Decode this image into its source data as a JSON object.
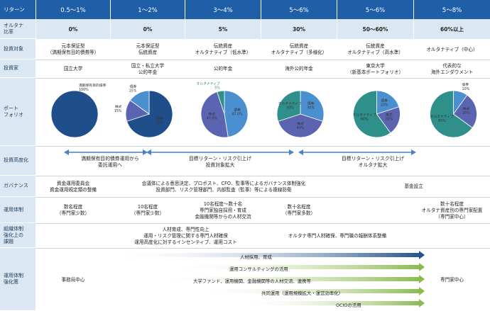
{
  "header": {
    "row_label": "リターン",
    "cols": [
      "0.5〜1%",
      "1〜2%",
      "3〜4%",
      "5〜6%",
      "5〜6%",
      "5〜8%"
    ]
  },
  "rows": {
    "alt_ratio": {
      "label": "オルタナ\n比率",
      "values": [
        "0%",
        "0%",
        "5%",
        "30%",
        "50〜60%",
        "60%以上"
      ]
    },
    "investment_target": {
      "label": "投資対象",
      "values": [
        "元本保証型\n（満期保有目的債券等）",
        "元本保証型\n伝統資産",
        "伝統資産\nオルタナティブ（低水準）",
        "伝統資産\nオルタナティブ（多様化）",
        "伝統資産\nオルタナティブ（高水準）",
        "オルタナティブ（中心）"
      ]
    },
    "investor": {
      "label": "投資家",
      "values": [
        "国立大学",
        "国立・私立大学\n公的年金",
        "公的年金",
        "海外公的年金",
        "東京大学\n（新基本ポートフォリオ）",
        "代表的な\n海外エンダウメント"
      ]
    },
    "portfolio": {
      "label": "ポート\nフォリオ"
    },
    "sophistication": {
      "label": "投資高度化",
      "texts": [
        "満期保有目的債券運用から\n委託運用へ",
        "目標リターン・リスク引上げ\n投資対象拡大",
        "目標リターン・リスク引上げ\nオルタナ拡大"
      ]
    },
    "governance": {
      "label": "ガバナンス",
      "texts": [
        "資金運用委員会\n資金運用規定類の整備",
        "会議体による意思決定、プロポスト、CFO、監事等によるガバナンス体制強化\n投資部門、リスク管理部門、内部監査（監事）等による複線防衛",
        "基金設立"
      ]
    },
    "structure": {
      "label": "運用体制",
      "values": [
        "数名程度\n（専門家少数）",
        "10名程度\n（専門家少数）",
        "10名程度〜数十名\n専門家独自採用・育成\n金融機関等からの人材交流",
        "数十名程度\n（専門家多数）",
        "数十名程度\nオルタナ資産別の専門家配置\n（専門家中心）"
      ]
    },
    "issues": {
      "label": "組織体制\n強化上の\n課題",
      "texts": [
        "人材育成、専門性向上\n運用・リスク管理に関する専門人材確保\n運用高度化に対するインセンティブ、運用コスト",
        "オルタナ専門人材確保、専門職の報酬体系整備"
      ]
    },
    "measures": {
      "label": "運用体制\n強化策",
      "left": "事務局中心",
      "right": "専門家中心",
      "arrows": [
        "人材採用、育成",
        "運用コンサルティングの活用",
        "大学ファンド、運用機関、金融機関等の人材交流、連携等",
        "共同運用（運用規模拡大・運営効率化）",
        "OCIOの活用"
      ]
    }
  },
  "chart_data": [
    {
      "type": "pie",
      "slices": [
        {
          "name": "満期保有目的債券",
          "value": 100,
          "label": "100%"
        }
      ]
    },
    {
      "type": "pie",
      "slices": [
        {
          "name": "債券",
          "value": 70,
          "label": "70%"
        },
        {
          "name": "株式",
          "value": 15,
          "label": "15%"
        },
        {
          "name": "債券",
          "value": 15,
          "label": "15%"
        }
      ]
    },
    {
      "type": "pie",
      "slices": [
        {
          "name": "債券",
          "value": 47.0,
          "label": "47.0%"
        },
        {
          "name": "株式",
          "value": 47.0,
          "label": "47.0%"
        },
        {
          "name": "オルタナティブ",
          "value": 5,
          "label": "5%"
        }
      ]
    },
    {
      "type": "pie",
      "slices": [
        {
          "name": "債券",
          "value": 30,
          "label": "30%"
        },
        {
          "name": "株式",
          "value": 40,
          "label": "40%"
        },
        {
          "name": "オルタナティブ",
          "value": 30,
          "label": "30%"
        }
      ]
    },
    {
      "type": "pie",
      "slices": [
        {
          "name": "債券",
          "value": 20,
          "label": "20%"
        },
        {
          "name": "株式",
          "value": 20,
          "label": "20%"
        },
        {
          "name": "オルタナティブ",
          "value": 60,
          "label": "60%"
        }
      ]
    },
    {
      "type": "pie",
      "slices": [
        {
          "name": "債券",
          "value": 10,
          "label": "10%"
        },
        {
          "name": "株式",
          "value": 25,
          "label": "25%"
        },
        {
          "name": "オルタナティブ",
          "value": 65,
          "label": "65%"
        }
      ]
    }
  ],
  "colors": {
    "header": "#1f5fa8",
    "label_bg": "#dbe8f3",
    "bond": "#4a8fd0",
    "equity": "#5b64b0",
    "alt": "#2f8f8a",
    "navy": "#1f4f8a"
  }
}
